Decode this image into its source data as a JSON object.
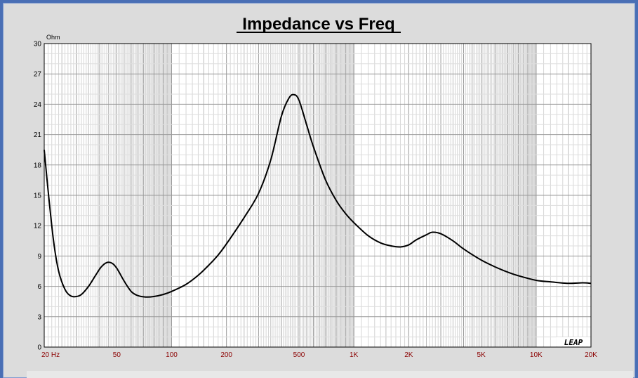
{
  "chart_data": {
    "type": "line",
    "title": "Impedance vs Freq",
    "ylabel": "Ohm",
    "xlabel": "",
    "x_scale": "log",
    "xlim": [
      20,
      20000
    ],
    "ylim": [
      0,
      30
    ],
    "grid": true,
    "y_ticks": [
      "0",
      "3",
      "6",
      "9",
      "12",
      "15",
      "18",
      "21",
      "24",
      "27",
      "30"
    ],
    "x_ticks": [
      {
        "value": 20,
        "label": "20  Hz"
      },
      {
        "value": 50,
        "label": "50"
      },
      {
        "value": 100,
        "label": "100"
      },
      {
        "value": 200,
        "label": "200"
      },
      {
        "value": 500,
        "label": "500"
      },
      {
        "value": 1000,
        "label": "1K"
      },
      {
        "value": 2000,
        "label": "2K"
      },
      {
        "value": 5000,
        "label": "5K"
      },
      {
        "value": 10000,
        "label": "10K"
      },
      {
        "value": 20000,
        "label": "20K"
      }
    ],
    "series": [
      {
        "color": "#000000",
        "points": [
          [
            20,
            19.5
          ],
          [
            21,
            15.5
          ],
          [
            22.5,
            10.5
          ],
          [
            24,
            7.5
          ],
          [
            26,
            5.7
          ],
          [
            28,
            5.05
          ],
          [
            30,
            5.0
          ],
          [
            32,
            5.2
          ],
          [
            35,
            6.0
          ],
          [
            38,
            7.0
          ],
          [
            41,
            7.9
          ],
          [
            44,
            8.35
          ],
          [
            47,
            8.3
          ],
          [
            50,
            7.8
          ],
          [
            55,
            6.5
          ],
          [
            60,
            5.5
          ],
          [
            65,
            5.1
          ],
          [
            72,
            4.95
          ],
          [
            80,
            5.0
          ],
          [
            90,
            5.2
          ],
          [
            100,
            5.5
          ],
          [
            120,
            6.2
          ],
          [
            140,
            7.1
          ],
          [
            160,
            8.1
          ],
          [
            180,
            9.1
          ],
          [
            200,
            10.2
          ],
          [
            250,
            12.8
          ],
          [
            300,
            15.2
          ],
          [
            350,
            18.5
          ],
          [
            400,
            22.8
          ],
          [
            440,
            24.6
          ],
          [
            470,
            24.95
          ],
          [
            500,
            24.4
          ],
          [
            550,
            22.0
          ],
          [
            600,
            19.8
          ],
          [
            700,
            16.5
          ],
          [
            800,
            14.5
          ],
          [
            900,
            13.2
          ],
          [
            1000,
            12.3
          ],
          [
            1200,
            11.0
          ],
          [
            1400,
            10.3
          ],
          [
            1600,
            10.0
          ],
          [
            1800,
            9.9
          ],
          [
            2000,
            10.1
          ],
          [
            2200,
            10.6
          ],
          [
            2500,
            11.1
          ],
          [
            2700,
            11.35
          ],
          [
            3000,
            11.2
          ],
          [
            3500,
            10.5
          ],
          [
            4000,
            9.7
          ],
          [
            5000,
            8.6
          ],
          [
            6000,
            7.9
          ],
          [
            7000,
            7.4
          ],
          [
            8000,
            7.05
          ],
          [
            10000,
            6.6
          ],
          [
            12000,
            6.45
          ],
          [
            15000,
            6.3
          ],
          [
            18000,
            6.35
          ],
          [
            20000,
            6.3
          ]
        ]
      }
    ]
  },
  "logo_text": "LEAP"
}
